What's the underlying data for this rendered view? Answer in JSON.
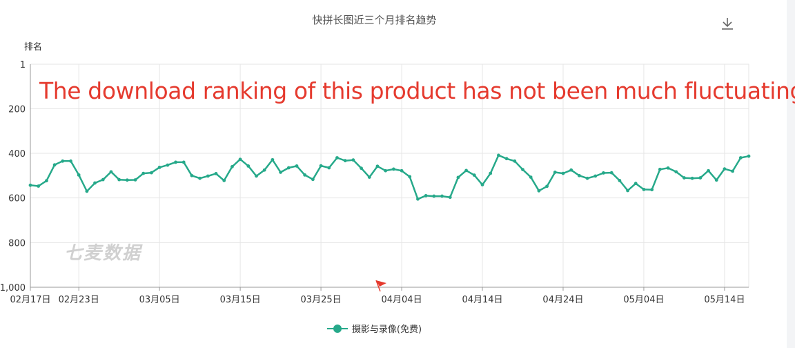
{
  "chart_data": {
    "type": "line",
    "title": "快拼长图近三个月排名趋势",
    "ylabel": "排名",
    "xlabel": "",
    "y_axis_inverted": true,
    "ylim": [
      1,
      1000
    ],
    "yticks": [
      "1",
      "200",
      "400",
      "600",
      "800",
      "1,000"
    ],
    "ytick_values": [
      1,
      200,
      400,
      600,
      800,
      1000
    ],
    "x_tick_labels": [
      "02月17日",
      "02月23日",
      "03月05日",
      "03月15日",
      "03月25日",
      "04月04日",
      "04月14日",
      "04月24日",
      "05月04日",
      "05月14日"
    ],
    "x_tick_index": [
      0,
      6,
      16,
      26,
      36,
      46,
      56,
      66,
      76,
      86
    ],
    "grid": true,
    "legend_position": "bottom",
    "series": [
      {
        "name": "摄影与录像(免费)",
        "color": "#26a98a",
        "values": [
          543,
          547,
          523,
          452,
          435,
          435,
          497,
          570,
          533,
          518,
          483,
          518,
          520,
          519,
          490,
          487,
          463,
          453,
          440,
          440,
          500,
          512,
          502,
          491,
          522,
          460,
          427,
          457,
          502,
          475,
          429,
          485,
          465,
          457,
          497,
          517,
          456,
          465,
          420,
          433,
          430,
          467,
          507,
          458,
          478,
          471,
          478,
          505,
          605,
          590,
          592,
          592,
          597,
          508,
          477,
          498,
          541,
          490,
          409,
          424,
          435,
          473,
          507,
          568,
          548,
          485,
          490,
          475,
          500,
          512,
          502,
          488,
          487,
          522,
          567,
          535,
          562,
          563,
          472,
          466,
          483,
          510,
          512,
          510,
          478,
          520,
          470,
          480,
          420,
          413
        ]
      }
    ]
  },
  "toolbar": {
    "download_icon": "download-icon"
  },
  "annotation": {
    "text": "The download ranking of this product has not been much fluctuating."
  },
  "watermark": {
    "text": "七麦数据"
  },
  "marker": {
    "icon": "red-flag-icon",
    "color": "#e53a2e"
  }
}
